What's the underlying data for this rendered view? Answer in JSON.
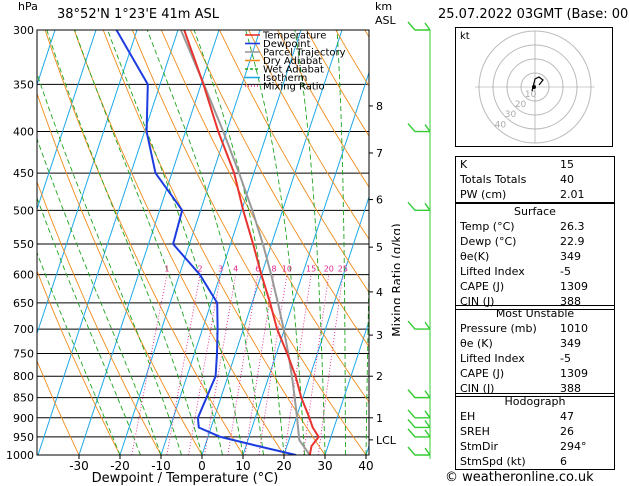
{
  "header": {
    "hpa_label": "hPa",
    "location": "38°52'N  1°23'E  41m  ASL",
    "km_label": "km",
    "asl_label": "ASL",
    "datetime": "25.07.2022  03GMT  (Base: 00)"
  },
  "chart_data": {
    "type": "line",
    "title": "Skew-T log-P diagram",
    "xlabel": "Dewpoint / Temperature (°C)",
    "ylabel": "hPa",
    "mixing_ratio_axis_label": "Mixing Ratio (g/kg)",
    "x_ticks": [
      -30,
      -20,
      -10,
      0,
      10,
      20,
      30,
      40
    ],
    "pressure_levels": [
      300,
      350,
      400,
      450,
      500,
      550,
      600,
      650,
      700,
      750,
      800,
      850,
      900,
      950,
      1000
    ],
    "km_ticks": [
      {
        "km": "8",
        "p": 372
      },
      {
        "km": "7",
        "p": 425
      },
      {
        "km": "6",
        "p": 485
      },
      {
        "km": "5",
        "p": 555
      },
      {
        "km": "4",
        "p": 630
      },
      {
        "km": "3",
        "p": 712
      },
      {
        "km": "2",
        "p": 800
      },
      {
        "km": "1",
        "p": 900
      },
      {
        "km": "LCL",
        "p": 958
      }
    ],
    "mixing_ratio_labels": [
      "1",
      "2",
      "3",
      "4",
      "6",
      "8",
      "10",
      "15",
      "20",
      "25"
    ],
    "mixing_ratio_values": [
      1,
      2,
      3,
      4,
      6,
      8,
      10,
      15,
      20,
      25
    ],
    "legend": [
      "Temperature",
      "Dewpoint",
      "Parcel Trajectory",
      "Dry Adiabat",
      "Wet Adiabat",
      "Isotherm",
      "Mixing Ratio"
    ],
    "legend_colors": [
      "#e8342f",
      "#1c3ce0",
      "#999999",
      "#f08c1c",
      "#1ea51e",
      "#1ea8e8",
      "#e0288c"
    ],
    "temperature": {
      "p": [
        1000,
        975,
        950,
        925,
        900,
        850,
        800,
        750,
        700,
        650,
        600,
        550,
        500,
        450,
        400,
        350,
        300
      ],
      "t": [
        26.3,
        26.0,
        27.0,
        24.8,
        23.2,
        19.6,
        16.5,
        12.6,
        8.2,
        4.4,
        0.0,
        -4.5,
        -9.6,
        -14.8,
        -22.0,
        -29.4,
        -38.5
      ]
    },
    "dewpoint": {
      "p": [
        1000,
        975,
        950,
        925,
        900,
        850,
        800,
        750,
        700,
        650,
        600,
        550,
        500,
        450,
        400,
        350,
        300
      ],
      "td": [
        22.9,
        13.0,
        3.0,
        -3.0,
        -4.0,
        -3.5,
        -3.0,
        -4.5,
        -6.3,
        -8.5,
        -15.0,
        -24.0,
        -24.5,
        -34.0,
        -39.5,
        -43.0,
        -55.0
      ]
    },
    "parcel": {
      "p": [
        1000,
        958,
        900,
        850,
        800,
        750,
        700,
        650,
        600,
        550,
        500,
        450,
        400,
        350,
        300
      ],
      "t": [
        26.3,
        22.5,
        20.2,
        18.0,
        15.6,
        12.9,
        9.8,
        6.3,
        2.4,
        -2.1,
        -7.4,
        -13.6,
        -20.8,
        -29.3,
        -39.3
      ]
    }
  },
  "hodograph": {
    "label": "kt",
    "ring_labels": [
      "10",
      "20",
      "30",
      "40"
    ]
  },
  "indices": {
    "k": {
      "label": "K",
      "value": "15"
    },
    "totals": {
      "label": "Totals Totals",
      "value": "40"
    },
    "pw": {
      "label": "PW (cm)",
      "value": "2.01"
    }
  },
  "surface": {
    "title": "Surface",
    "temp": {
      "label": "Temp (°C)",
      "value": "26.3"
    },
    "dewp": {
      "label": "Dewp (°C)",
      "value": "22.9"
    },
    "theta_e": {
      "label": "θe(K)",
      "value": "349"
    },
    "lifted_index": {
      "label": "Lifted Index",
      "value": "-5"
    },
    "cape": {
      "label": "CAPE (J)",
      "value": "1309"
    },
    "cin": {
      "label": "CIN (J)",
      "value": "388"
    }
  },
  "most_unstable": {
    "title": "Most Unstable",
    "pressure": {
      "label": "Pressure (mb)",
      "value": "1010"
    },
    "theta_e": {
      "label": "θe (K)",
      "value": "349"
    },
    "lifted_index": {
      "label": "Lifted Index",
      "value": "-5"
    },
    "cape": {
      "label": "CAPE (J)",
      "value": "1309"
    },
    "cin": {
      "label": "CIN (J)",
      "value": "388"
    }
  },
  "hodograph_params": {
    "title": "Hodograph",
    "eh": {
      "label": "EH",
      "value": "47"
    },
    "sreh": {
      "label": "SREH",
      "value": "26"
    },
    "stmdir": {
      "label": "StmDir",
      "value": "294°"
    },
    "stmspd": {
      "label": "StmSpd (kt)",
      "value": "6"
    }
  },
  "credit": "© weatheronline.co.uk",
  "colors": {
    "temperature": "#e8342f",
    "dewpoint": "#1c3ce0",
    "parcel": "#999999",
    "dry_adiabat": "#f08c1c",
    "wet_adiabat": "#1ea51e",
    "isotherm": "#1ea8e8",
    "mixing_ratio": "#e0288c",
    "wind": "#33cc33"
  }
}
